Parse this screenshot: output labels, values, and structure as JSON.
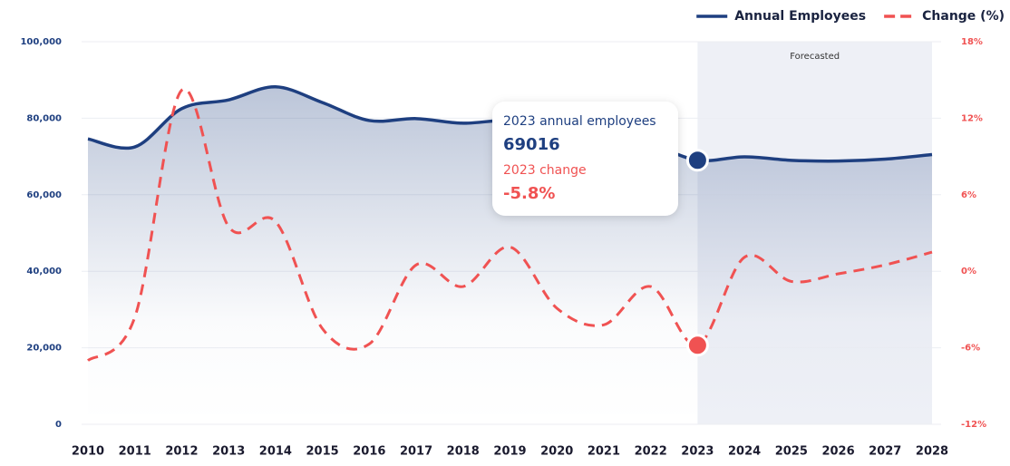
{
  "chart_data": {
    "type": "line",
    "categories": [
      "2010",
      "2011",
      "2012",
      "2013",
      "2014",
      "2015",
      "2016",
      "2017",
      "2018",
      "2019",
      "2020",
      "2021",
      "2022",
      "2023",
      "2024",
      "2025",
      "2026",
      "2027",
      "2028"
    ],
    "series": [
      {
        "name": "Annual Employees",
        "color": "#1e3f80",
        "axis": "y",
        "area": true,
        "values": [
          74600,
          72500,
          82500,
          84800,
          88200,
          84100,
          79400,
          79900,
          78700,
          79500,
          78000,
          76000,
          73300,
          69016,
          69900,
          69000,
          68800,
          69300,
          70500
        ]
      },
      {
        "name": "Change (%)",
        "color": "#f05252",
        "axis": "y2",
        "dashed": true,
        "values": [
          -7.0,
          -3.6,
          14.2,
          3.5,
          3.9,
          -4.5,
          -5.7,
          0.5,
          -1.2,
          1.9,
          -2.9,
          -4.2,
          -1.2,
          -5.8,
          1.1,
          -0.8,
          -0.2,
          0.5,
          1.5
        ]
      }
    ],
    "ylim": [
      0,
      100000
    ],
    "yticks": [
      0,
      {
        "value": 20000,
        "label": "20,000"
      },
      {
        "value": 40000,
        "label": "40,000"
      },
      {
        "value": 60000,
        "label": "60,000"
      },
      {
        "value": 80000,
        "label": "80,000"
      },
      {
        "value": 100000,
        "label": "100,000"
      }
    ],
    "y2lim": [
      -12,
      18
    ],
    "y2ticks": [
      {
        "value": -12,
        "label": "-12%"
      },
      {
        "value": -6,
        "label": "-6%"
      },
      {
        "value": 0,
        "label": "0%"
      },
      {
        "value": 6,
        "label": "6%"
      },
      {
        "value": 12,
        "label": "12%"
      },
      {
        "value": 18,
        "label": "18%"
      }
    ],
    "grid": true,
    "legend": "top-right",
    "forecast": {
      "label": "Forecasted",
      "start": "2023",
      "end": "2028"
    },
    "tooltip": {
      "category": "2023",
      "line1": "2023 annual employees",
      "line2": "69016",
      "line3": "2023 change",
      "line4": "-5.8%"
    }
  }
}
